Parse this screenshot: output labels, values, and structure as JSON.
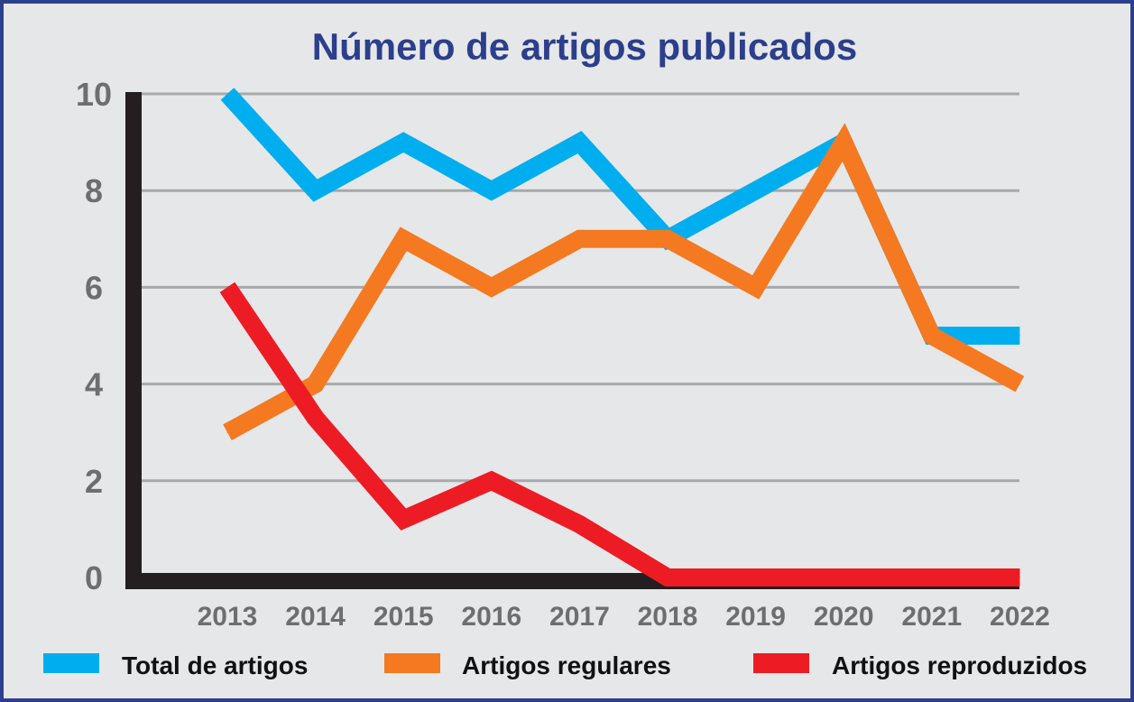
{
  "chart_data": {
    "type": "line",
    "title": "Número de artigos publicados",
    "xlabel": "",
    "ylabel": "",
    "ylim": [
      0,
      10
    ],
    "yticks": [
      "0",
      "2",
      "4",
      "6",
      "8",
      "10"
    ],
    "categories": [
      "2013",
      "2014",
      "2015",
      "2016",
      "2017",
      "2018",
      "2019",
      "2020",
      "2021",
      "2022"
    ],
    "grid": true,
    "legend_position": "bottom",
    "series": [
      {
        "name": "Total de artigos",
        "color": "#00aeef",
        "values": [
          10,
          8,
          9,
          8,
          9,
          7,
          8,
          9,
          5,
          5
        ]
      },
      {
        "name": "Artigos regulares",
        "color": "#f47920",
        "values": [
          3,
          4,
          7,
          6,
          7,
          7,
          6,
          9,
          5,
          4
        ]
      },
      {
        "name": "Artigos reproduzidos",
        "color": "#ed1c24",
        "values": [
          6,
          3.3,
          1.2,
          2,
          1.1,
          0,
          0,
          0,
          0,
          0
        ]
      }
    ]
  },
  "colors": {
    "title": "#2b3f8c",
    "tick_text": "#6d6e71",
    "axis": "#231f20",
    "grid": "#a7a9ac",
    "background": "#e6e7e8"
  }
}
